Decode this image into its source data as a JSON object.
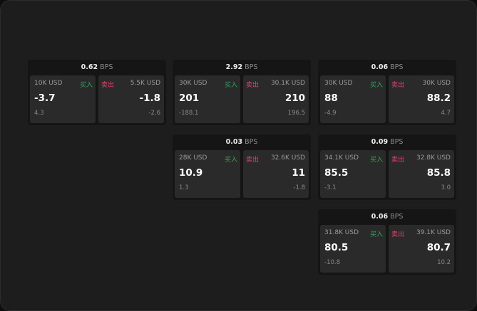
{
  "unit": "BPS",
  "buy_label": "买入",
  "sell_label": "卖出",
  "colors": {
    "buy": "#2faa5a",
    "sell": "#e0436e"
  },
  "cards": [
    {
      "bps": "0.62",
      "buy": {
        "size": "10K USD",
        "price": "-3.7",
        "change": "4.3"
      },
      "sell": {
        "size": "5.5K USD",
        "price": "-1.8",
        "change": "-2.6"
      }
    },
    {
      "bps": "2.92",
      "buy": {
        "size": "30K USD",
        "price": "201",
        "change": "-188.1"
      },
      "sell": {
        "size": "30.1K USD",
        "price": "210",
        "change": "196.5"
      }
    },
    {
      "bps": "0.06",
      "buy": {
        "size": "30K USD",
        "price": "88",
        "change": "-4.9"
      },
      "sell": {
        "size": "30K USD",
        "price": "88.2",
        "change": "4.7"
      }
    },
    {
      "bps": "0.03",
      "buy": {
        "size": "28K USD",
        "price": "10.9",
        "change": "1.3"
      },
      "sell": {
        "size": "32.6K USD",
        "price": "11",
        "change": "-1.8"
      }
    },
    {
      "bps": "0.09",
      "buy": {
        "size": "34.1K USD",
        "price": "85.5",
        "change": "-3.1"
      },
      "sell": {
        "size": "32.8K USD",
        "price": "85.8",
        "change": "3.0"
      }
    },
    {
      "bps": "0.06",
      "buy": {
        "size": "31.8K USD",
        "price": "80.5",
        "change": "-10.8"
      },
      "sell": {
        "size": "39.1K USD",
        "price": "80.7",
        "change": "10.2"
      }
    }
  ]
}
